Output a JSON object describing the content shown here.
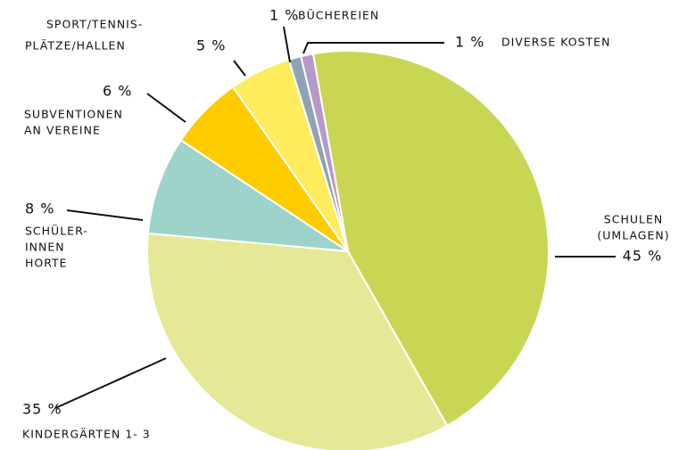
{
  "chart_data": {
    "type": "pie",
    "categories": [
      [
        "SCHULEN",
        "(UMLAGEN)"
      ],
      [
        "KINDERGÄRTEN 1- 3"
      ],
      [
        "SCHÜLER-",
        "INNEN",
        "HORTE"
      ],
      [
        "SUBVENTIONEN",
        "AN VEREINE"
      ],
      [
        "SPORT/TENNIS-",
        "PLÄTZE/HALLEN"
      ],
      [
        "BÜCHEREIEN"
      ],
      [
        "DIVERSE KOSTEN"
      ]
    ],
    "values": [
      45,
      35,
      8,
      6,
      5,
      1,
      1
    ],
    "value_labels": [
      "45 %",
      "35 %",
      "8 %",
      "6 %",
      "5 %",
      "1 %",
      "1 %"
    ],
    "colors": [
      "#c9d654",
      "#e5e896",
      "#9dd3c8",
      "#ffcc00",
      "#ffec5c",
      "#8fa3b5",
      "#b799c7"
    ]
  }
}
